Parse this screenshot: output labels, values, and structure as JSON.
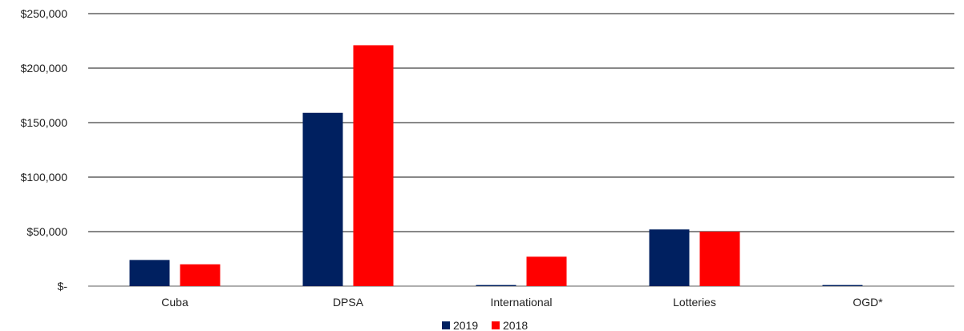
{
  "chart_data": {
    "type": "bar",
    "categories": [
      "Cuba",
      "DPSA",
      "International",
      "Lotteries",
      "OGD*"
    ],
    "series": [
      {
        "name": "2019",
        "color": "#002060",
        "values": [
          24000,
          159000,
          1000,
          52000,
          1000
        ]
      },
      {
        "name": "2018",
        "color": "#ff0000",
        "values": [
          20000,
          221000,
          27000,
          50000,
          0
        ]
      }
    ],
    "y_ticks": [
      "$-",
      "$50,000",
      "$100,000",
      "$150,000",
      "$200,000",
      "$250,000"
    ],
    "ylim": [
      0,
      250000
    ],
    "grid": true,
    "legend_position": "bottom-center"
  }
}
